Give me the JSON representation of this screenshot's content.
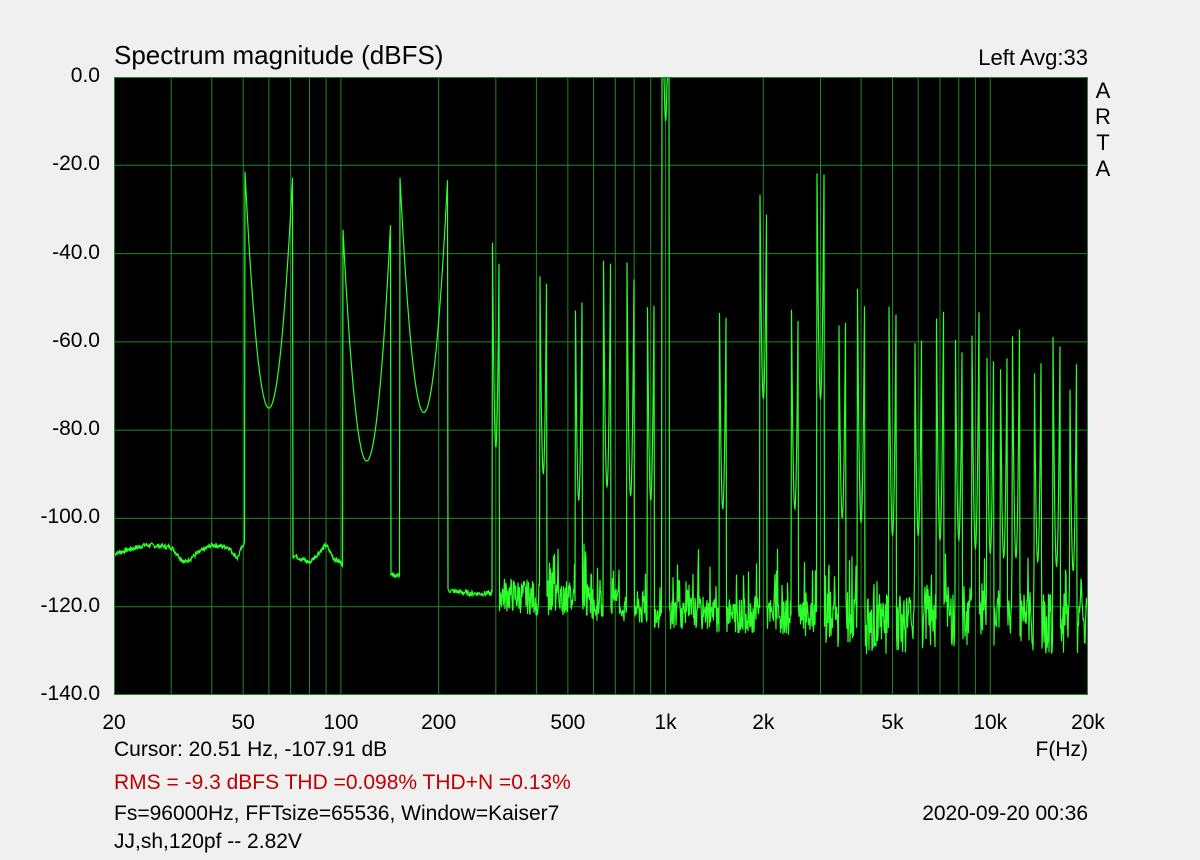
{
  "header": {
    "title": "Spectrum magnitude (dBFS)",
    "channel": "Left  Avg:33",
    "vendor_letters": [
      "A",
      "R",
      "T",
      "A"
    ]
  },
  "footer": {
    "cursor": "Cursor: 20.51 Hz, -107.91 dB",
    "x_unit": "F(Hz)",
    "stats": "RMS =   -9.3 dBFS  THD =0.098%  THD+N =0.13%",
    "settings": "Fs=96000Hz, FFTsize=65536, Window=Kaiser7",
    "datetime": "2020-09-20  00:36",
    "comment": "JJ,sh,120pf -- 2.82V"
  },
  "colors": {
    "plot_background": "#000000",
    "grid": "#1f8a1f",
    "trace": "#2cff2c",
    "stats_text": "#c00000"
  },
  "chart_data": {
    "type": "line",
    "title": "Spectrum magnitude (dBFS)",
    "xlabel": "F(Hz)",
    "ylabel": "",
    "x_scale": "log",
    "xlim": [
      20,
      20000
    ],
    "ylim": [
      -140,
      0
    ],
    "grid": true,
    "x_ticks": [
      {
        "value": 20,
        "label": "20"
      },
      {
        "value": 50,
        "label": "50"
      },
      {
        "value": 100,
        "label": "100"
      },
      {
        "value": 200,
        "label": "200"
      },
      {
        "value": 500,
        "label": "500"
      },
      {
        "value": 1000,
        "label": "1k"
      },
      {
        "value": 2000,
        "label": "2k"
      },
      {
        "value": 5000,
        "label": "5k"
      },
      {
        "value": 10000,
        "label": "10k"
      },
      {
        "value": 20000,
        "label": "20k"
      }
    ],
    "y_ticks": [
      {
        "value": 0,
        "label": "0.0"
      },
      {
        "value": -20,
        "label": "-20.0"
      },
      {
        "value": -40,
        "label": "-40.0"
      },
      {
        "value": -60,
        "label": "-60.0"
      },
      {
        "value": -80,
        "label": "-80.0"
      },
      {
        "value": -100,
        "label": "-100.0"
      },
      {
        "value": -120,
        "label": "-120.0"
      },
      {
        "value": -140,
        "label": "-140.0"
      }
    ],
    "series": [
      {
        "noise_floor": [
          [
            20,
            -108
          ],
          [
            25,
            -106
          ],
          [
            30,
            -106.5
          ],
          [
            33,
            -110
          ],
          [
            36,
            -108
          ],
          [
            40,
            -106
          ],
          [
            45,
            -106.5
          ],
          [
            48,
            -109
          ],
          [
            52,
            -103
          ],
          [
            70,
            -108
          ],
          [
            80,
            -110
          ],
          [
            90,
            -106
          ],
          [
            95,
            -109
          ],
          [
            105,
            -111
          ],
          [
            130,
            -112
          ],
          [
            150,
            -113
          ],
          [
            170,
            -115
          ],
          [
            200,
            -116
          ],
          [
            250,
            -117
          ],
          [
            300,
            -117
          ],
          [
            400,
            -118
          ],
          [
            500,
            -118
          ],
          [
            700,
            -120
          ],
          [
            1000,
            -121
          ],
          [
            1500,
            -122
          ],
          [
            2000,
            -122
          ],
          [
            3000,
            -123
          ],
          [
            4000,
            -124
          ],
          [
            5000,
            -124
          ],
          [
            6000,
            -123
          ],
          [
            8000,
            -122
          ],
          [
            10000,
            -122
          ],
          [
            12000,
            -123
          ],
          [
            15000,
            -124
          ],
          [
            20000,
            -124
          ]
        ],
        "peaks": [
          [
            60,
            -75
          ],
          [
            120,
            -87
          ],
          [
            180,
            -76
          ],
          [
            300,
            -84
          ],
          [
            1000,
            -10
          ],
          [
            1000,
            -38
          ],
          [
            2000,
            -73
          ],
          [
            3000,
            -73
          ],
          [
            420,
            -90
          ],
          [
            540,
            -96
          ],
          [
            660,
            -93
          ],
          [
            780,
            -95
          ],
          [
            900,
            -96
          ],
          [
            1500,
            -98
          ],
          [
            2500,
            -98
          ],
          [
            3500,
            -100
          ],
          [
            4000,
            -101
          ],
          [
            5000,
            -104
          ],
          [
            6000,
            -104
          ],
          [
            7000,
            -105
          ],
          [
            8000,
            -105
          ],
          [
            9000,
            -107
          ],
          [
            10000,
            -108
          ],
          [
            11000,
            -109
          ],
          [
            12000,
            -109
          ],
          [
            14000,
            -110
          ],
          [
            16000,
            -111
          ],
          [
            18000,
            -112
          ]
        ]
      }
    ]
  }
}
